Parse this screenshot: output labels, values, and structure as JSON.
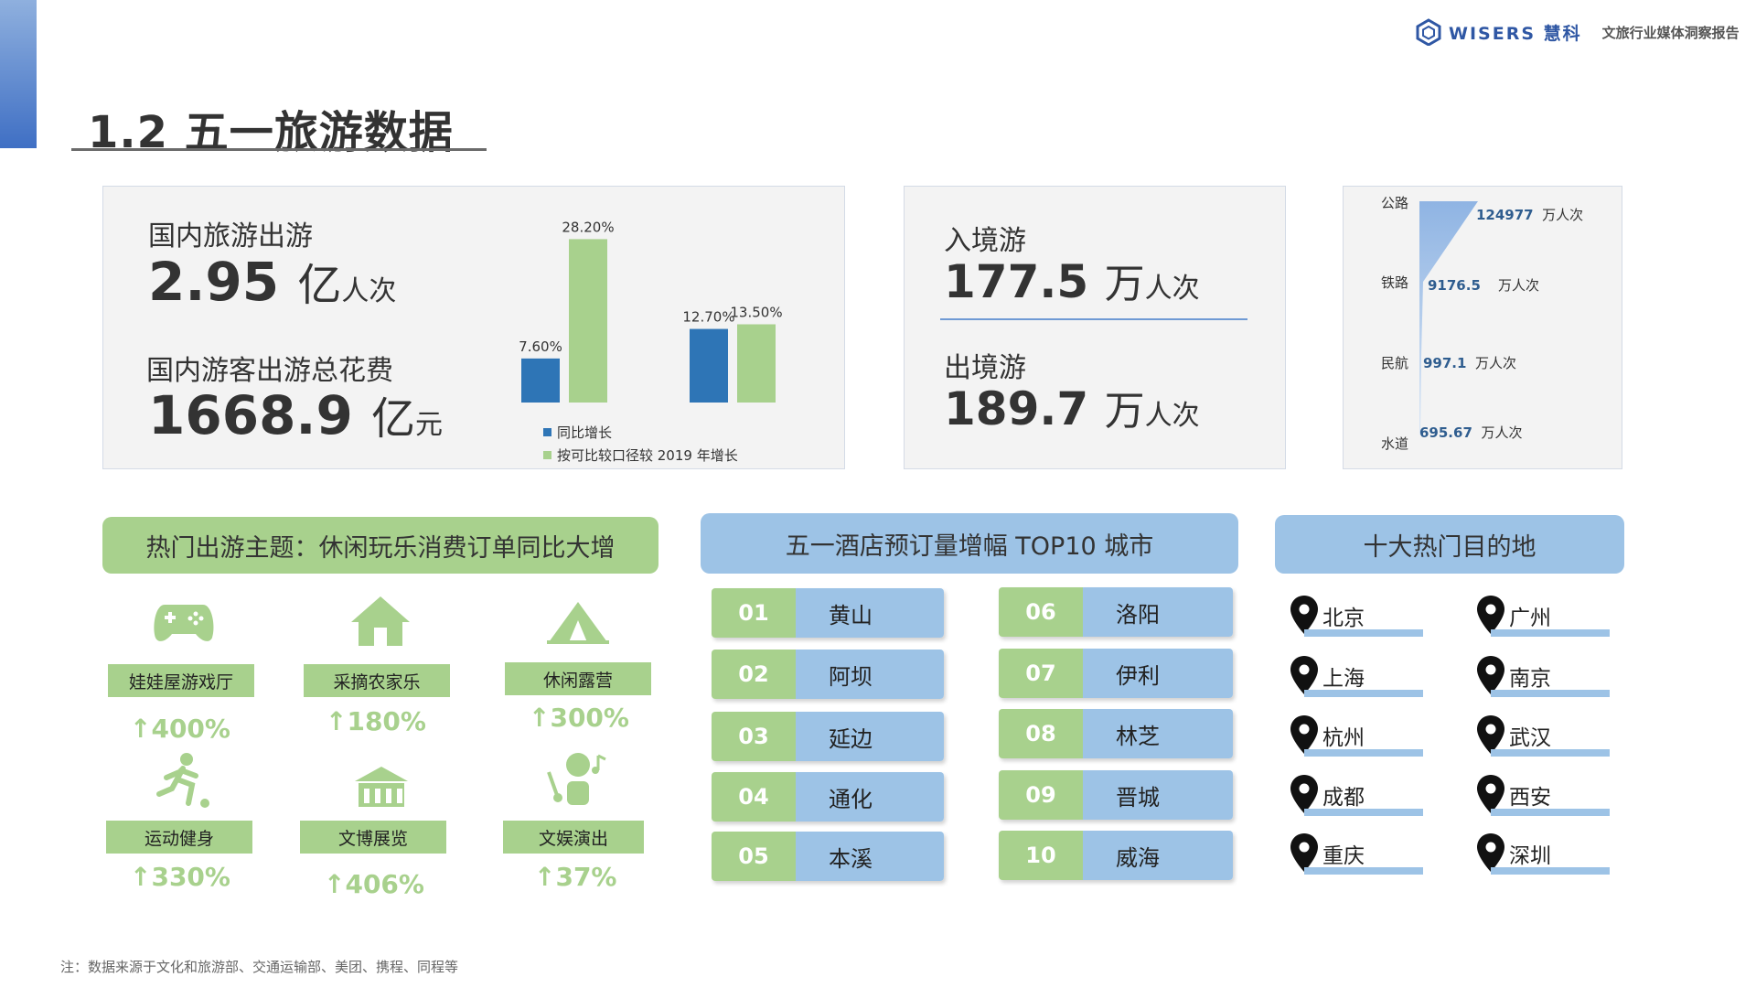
{
  "header": {
    "brand_name": "WISERS 慧科",
    "brand_sub": "文旅行业媒体洞察报告",
    "title": "1.2  五一旅游数据"
  },
  "domestic": {
    "trips_label": "国内旅游出游",
    "trips_value": "2.95",
    "trips_unit": "亿",
    "trips_unit_small": "人次",
    "spend_label": "国内游客出游总花费",
    "spend_value": "1668.9",
    "spend_unit": "亿",
    "spend_unit_small": "元"
  },
  "chart_data": {
    "type": "bar",
    "categories": [
      "国内旅游出游",
      "国内游客出游总花费"
    ],
    "series": [
      {
        "name": "同比增长",
        "values": [
          7.6,
          12.7
        ],
        "labels": [
          "7.60%",
          "12.70%"
        ],
        "color": "#2e75b6"
      },
      {
        "name": "按可比较口径较 2019 年增长",
        "values": [
          28.2,
          13.5
        ],
        "labels": [
          "28.20%",
          "13.50%"
        ],
        "color": "#a8d18d"
      }
    ],
    "ylim": [
      0,
      30
    ]
  },
  "border_travel": {
    "inbound_label": "入境游",
    "inbound_value": "177.5",
    "inbound_unit": "万",
    "inbound_unit_small": "人次",
    "outbound_label": "出境游",
    "outbound_value": "189.7",
    "outbound_unit": "万",
    "outbound_unit_small": "人次"
  },
  "transport": {
    "rows": [
      {
        "mode": "公路",
        "value": "124977",
        "unit": "万人次"
      },
      {
        "mode": "铁路",
        "value": "9176.5",
        "unit": "万人次"
      },
      {
        "mode": "民航",
        "value": "997.1",
        "unit": "万人次"
      },
      {
        "mode": "水道",
        "value": "695.67",
        "unit": "万人次"
      }
    ],
    "values_numeric": [
      124977,
      9176.5,
      997.1,
      695.67
    ]
  },
  "themes": {
    "title": "热门出游主题：休闲玩乐消费订单同比大增",
    "items": [
      {
        "icon": "gamepad-icon",
        "label": "娃娃屋游戏厅",
        "pct": "↑400%"
      },
      {
        "icon": "farmhouse-icon",
        "label": "采摘农家乐",
        "pct": "↑180%"
      },
      {
        "icon": "tent-icon",
        "label": "休闲露营",
        "pct": "↑300%"
      },
      {
        "icon": "runner-icon",
        "label": "运动健身",
        "pct": "↑330%"
      },
      {
        "icon": "museum-icon",
        "label": "文博展览",
        "pct": "↑406%"
      },
      {
        "icon": "performance-icon",
        "label": "文娱演出",
        "pct": "↑37%"
      }
    ]
  },
  "hotel_top10": {
    "title": "五一酒店预订量增幅 TOP10 城市",
    "rows": [
      {
        "rank": "01",
        "city": "黄山"
      },
      {
        "rank": "02",
        "city": "阿坝"
      },
      {
        "rank": "03",
        "city": "延边"
      },
      {
        "rank": "04",
        "city": "通化"
      },
      {
        "rank": "05",
        "city": "本溪"
      },
      {
        "rank": "06",
        "city": "洛阳"
      },
      {
        "rank": "07",
        "city": "伊利"
      },
      {
        "rank": "08",
        "city": "林芝"
      },
      {
        "rank": "09",
        "city": "晋城"
      },
      {
        "rank": "10",
        "city": "威海"
      }
    ]
  },
  "destinations": {
    "title": "十大热门目的地",
    "cities": [
      "北京",
      "广州",
      "上海",
      "南京",
      "杭州",
      "武汉",
      "成都",
      "西安",
      "重庆",
      "深圳"
    ]
  },
  "footnote": "注：数据来源于文化和旅游部、交通运输部、美团、携程、同程等",
  "colors": {
    "accent_blue": "#2e75b6",
    "accent_green": "#a8d18d",
    "light_blue": "#9dc3e6",
    "brand_blue": "#2f57a4"
  }
}
